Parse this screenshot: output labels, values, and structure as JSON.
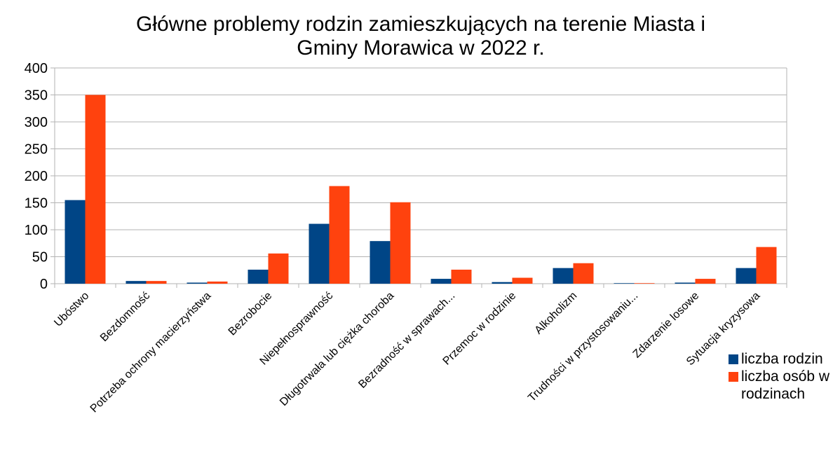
{
  "chart_data": {
    "type": "bar",
    "title": "Główne problemy rodzin zamieszkujących na terenie Miasta i Gminy Morawica w 2022 r.",
    "categories": [
      "Ubóstwo",
      "Bezdomność",
      "Potrzeba ochrony macierzyństwa",
      "Bezrobocie",
      "Niepełnosprawność",
      "Długotrwała lub ciężka choroba",
      "Bezradność w sprawach...",
      "Przemoc w rodzinie",
      "Alkoholizm",
      "Trudności w przystosowaniu...",
      "Zdarzenie losowe",
      "Sytuacja kryzysowa"
    ],
    "series": [
      {
        "name": "liczba rodzin",
        "color": "#004586",
        "values": [
          155,
          5,
          2,
          26,
          111,
          79,
          9,
          3,
          29,
          1,
          2,
          29
        ]
      },
      {
        "name": "liczba osób w rodzinach",
        "color": "#ff420e",
        "values": [
          350,
          5,
          4,
          56,
          181,
          151,
          26,
          11,
          38,
          1,
          9,
          68
        ]
      }
    ],
    "ylim": [
      0,
      400
    ],
    "yticks": [
      0,
      50,
      100,
      150,
      200,
      250,
      300,
      350,
      400
    ],
    "grid": true,
    "legend": "right"
  }
}
